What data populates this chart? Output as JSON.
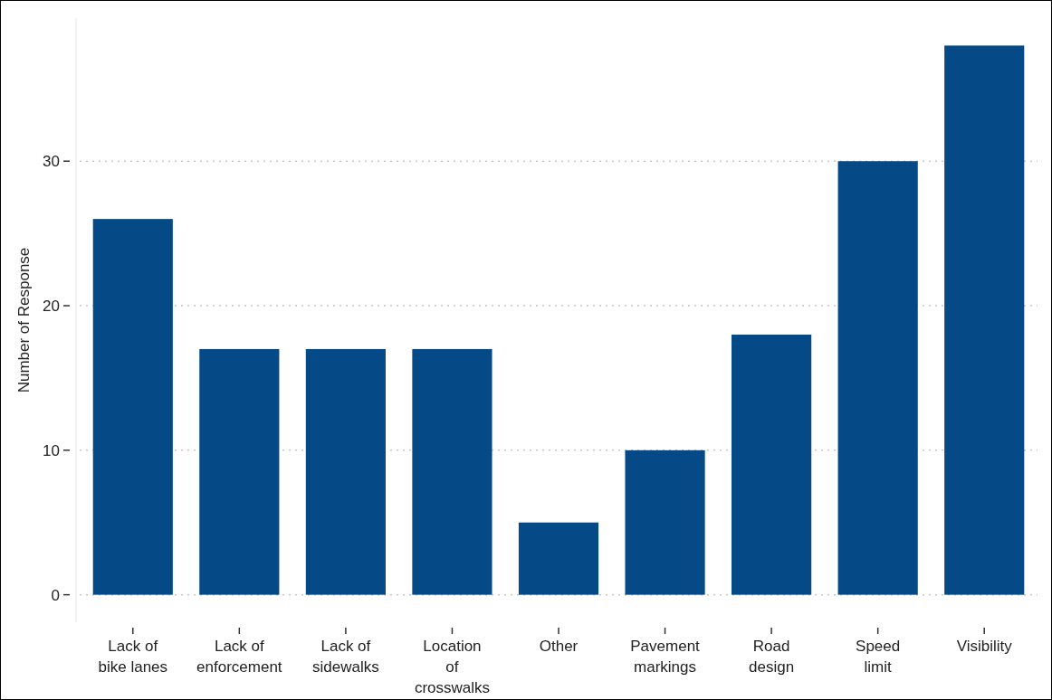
{
  "chart_data": {
    "type": "bar",
    "ylabel": "Number of Response",
    "categories": [
      "Lack of\nbike lanes",
      "Lack of\nenforcement",
      "Lack of\nsidewalks",
      "Location\nof\ncrosswalks",
      "Other",
      "Pavement\nmarkings",
      "Road\ndesign",
      "Speed\nlimit",
      "Visibility"
    ],
    "values": [
      26,
      17,
      17,
      17,
      5,
      10,
      18,
      30,
      38
    ],
    "color": "#054a86",
    "ylim": [
      -1.9,
      39.9
    ],
    "yticks": [
      0,
      10,
      20,
      30
    ],
    "grid": "y"
  }
}
